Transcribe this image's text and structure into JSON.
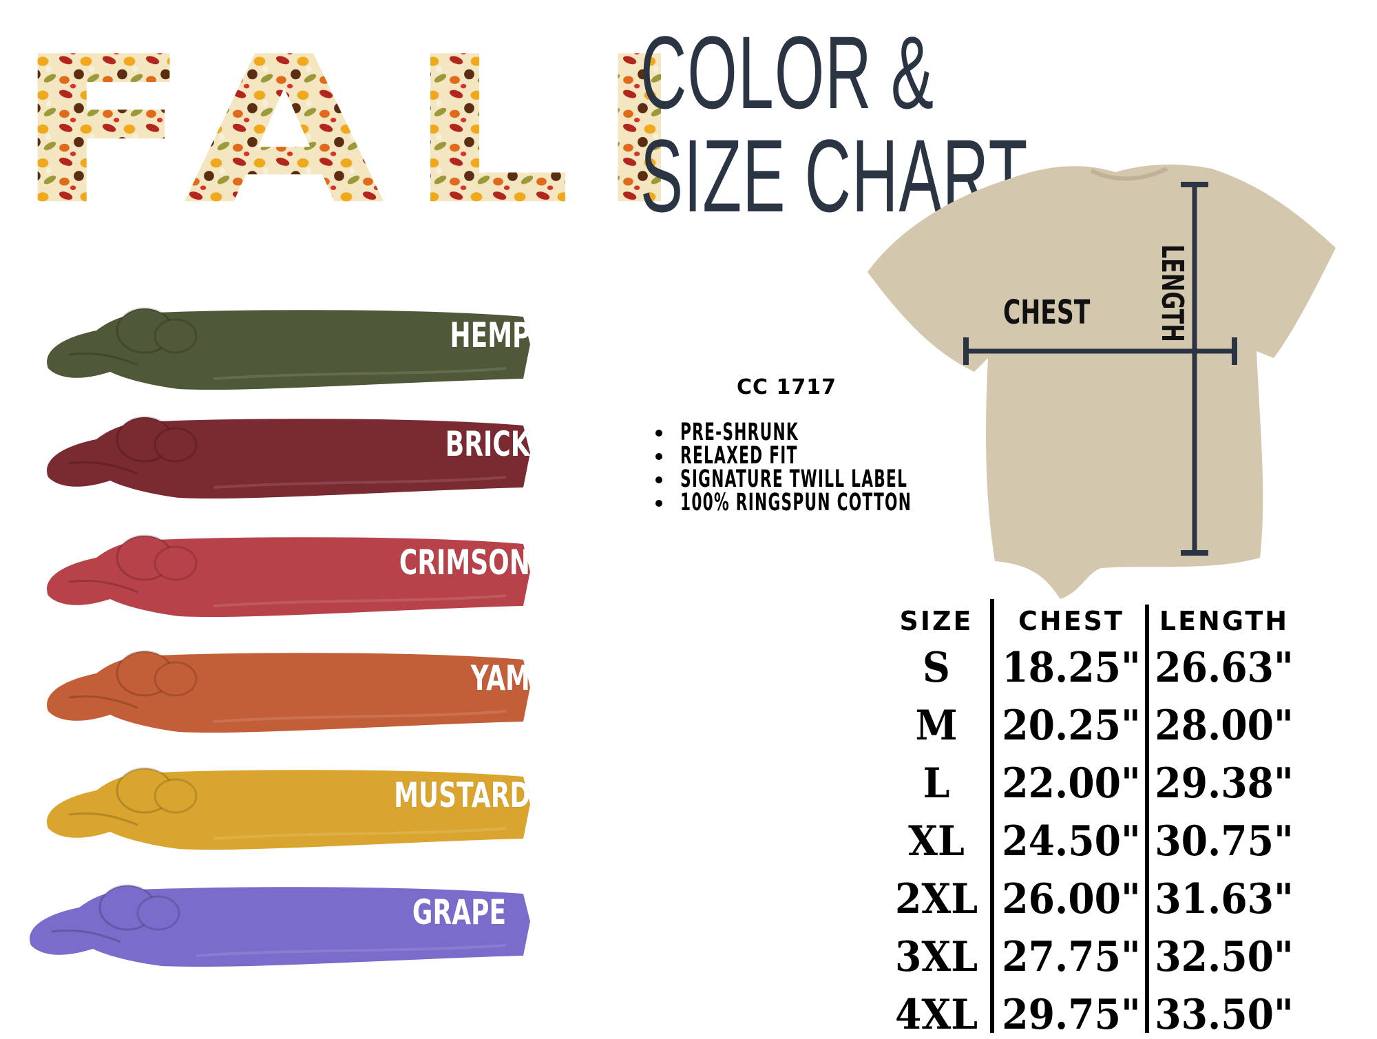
{
  "header": {
    "logo_text": "FALL",
    "title": "COLOR & SIZE CHART",
    "title_color": "#2b3442"
  },
  "colors": [
    {
      "name": "HEMP",
      "hex": "#4f5838"
    },
    {
      "name": "BRICK",
      "hex": "#7a2a31"
    },
    {
      "name": "CRIMSON",
      "hex": "#b7424a"
    },
    {
      "name": "YAM",
      "hex": "#c25f38"
    },
    {
      "name": "MUSTARD",
      "hex": "#d9a52f"
    },
    {
      "name": "GRAPE",
      "hex": "#7a6ccb"
    }
  ],
  "product": {
    "model": "CC 1717",
    "features": [
      "PRE-SHRUNK",
      "RELAXED FIT",
      "SIGNATURE TWILL LABEL",
      "100% RINGSPUN COTTON"
    ]
  },
  "diagram": {
    "shirt_color": "#d3c7ae",
    "line_color": "#2b3442",
    "chest_label": "CHEST",
    "length_label": "LENGTH"
  },
  "size_table": {
    "headers": [
      "SIZE",
      "CHEST",
      "LENGTH"
    ],
    "rows": [
      [
        "S",
        "18.25\"",
        "26.63\""
      ],
      [
        "M",
        "20.25\"",
        "28.00\""
      ],
      [
        "L",
        "22.00\"",
        "29.38\""
      ],
      [
        "XL",
        "24.50\"",
        "30.75\""
      ],
      [
        "2XL",
        "26.00\"",
        "31.63\""
      ],
      [
        "3XL",
        "27.75\"",
        "32.50\""
      ],
      [
        "4XL",
        "29.75\"",
        "33.50\""
      ]
    ]
  }
}
